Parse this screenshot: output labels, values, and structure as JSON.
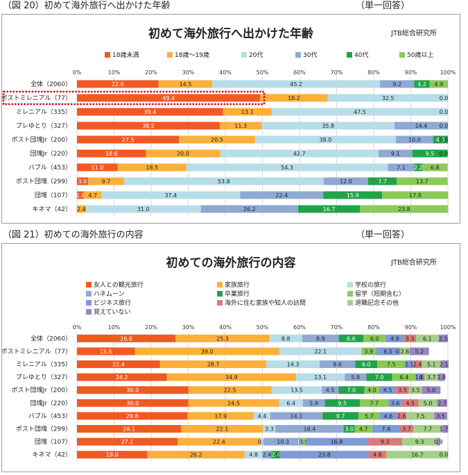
{
  "fig20": {
    "caption": "（図 20）初めて海外旅行へ出かけた年齢",
    "note": "（単一回答）",
    "credit": "JTB総合研究所"
  },
  "fig21": {
    "caption": "（図 21）初めての海外旅行の内容",
    "note": "（単一回答）",
    "credit": "JTB総合研究所"
  },
  "chart_data": [
    {
      "type": "bar",
      "orientation": "horizontal",
      "stacked": true,
      "title": "初めて海外旅行へ出かけた年齢",
      "xlim": [
        0,
        100
      ],
      "xticks": [
        "0%",
        "10%",
        "20%",
        "30%",
        "40%",
        "50%",
        "60%",
        "70%",
        "80%",
        "90%",
        "100%"
      ],
      "legend_position": "top",
      "highlighted_category": "ポストミレニアル（77）",
      "categories": [
        "全体（2060）",
        "ポストミレニアル（77）",
        "ミレニアル（335）",
        "プレゆとり（327）",
        "ポスト団塊Jr（200）",
        "団塊Jr（220）",
        "バブル（453）",
        "ポスト団塊（299）",
        "団塊（107）",
        "キネマ（42）"
      ],
      "series": [
        {
          "name": "18歳未満",
          "color": "#f05a22",
          "values": [
            22.0,
            49.4,
            39.4,
            38.5,
            27.5,
            18.6,
            11.0,
            3.0,
            1.9,
            0.0
          ]
        },
        {
          "name": "18歳～19歳",
          "color": "#fbb03b",
          "values": [
            14.5,
            18.2,
            13.1,
            11.3,
            20.5,
            20.0,
            18.5,
            9.7,
            4.7,
            2.4
          ]
        },
        {
          "name": "20代",
          "color": "#b7dde8",
          "values": [
            45.2,
            32.5,
            47.5,
            35.8,
            38.0,
            42.7,
            54.3,
            53.8,
            37.4,
            31.0
          ]
        },
        {
          "name": "30代",
          "color": "#8fa9d2",
          "values": [
            9.2,
            0.0,
            0.0,
            14.4,
            10.0,
            9.1,
            7.1,
            12.0,
            22.4,
            26.2
          ]
        },
        {
          "name": "40代",
          "color": "#22a24b",
          "values": [
            4.2,
            0.0,
            0.0,
            0.0,
            4.0,
            9.5,
            2.2,
            7.7,
            15.9,
            16.7
          ]
        },
        {
          "name": "50歳以上",
          "color": "#8cc95a",
          "values": [
            4.9,
            0.0,
            0.0,
            0.0,
            0.0,
            0.0,
            6.8,
            13.7,
            17.8,
            23.8
          ]
        }
      ],
      "data_labels": [
        [
          "22.0",
          "14.5",
          "45.2",
          "9.2",
          "4.2",
          "4.9"
        ],
        [
          "49.4",
          "18.2",
          "32.5",
          "",
          "",
          "0.0"
        ],
        [
          "39.4",
          "13.1",
          "47.5",
          "",
          "",
          "0.0"
        ],
        [
          "38.5",
          "11.3",
          "35.8",
          "14.4",
          "",
          "0.0"
        ],
        [
          "27.5",
          "20.5",
          "38.0",
          "10.0",
          "4.0",
          "0.0"
        ],
        [
          "18.6",
          "20.0",
          "42.7",
          "9.1",
          "9.5",
          "0.0"
        ],
        [
          "11.0",
          "18.5",
          "54.3",
          "7.1",
          "2.2",
          "6.8"
        ],
        [
          "3.0",
          "9.7",
          "53.8",
          "12.0",
          "7.7",
          "13.7"
        ],
        [
          "1.9",
          "4.7",
          "37.4",
          "22.4",
          "15.9",
          "17.8"
        ],
        [
          "0.0",
          "2.4",
          "31.0",
          "26.2",
          "16.7",
          "23.8"
        ]
      ]
    },
    {
      "type": "bar",
      "orientation": "horizontal",
      "stacked": true,
      "title": "初めての海外旅行の内容",
      "xlim": [
        0,
        100
      ],
      "xticks": [
        "0%",
        "10%",
        "20%",
        "30%",
        "40%",
        "50%",
        "60%",
        "70%",
        "80%",
        "90%",
        "100%"
      ],
      "legend_position": "top",
      "categories": [
        "全体（2060）",
        "ポストミレニアル（77）",
        "ミレニアル（335）",
        "プレゆとり（327）",
        "ポスト団塊Jr（200）",
        "団塊Jr（220）",
        "バブル（453）",
        "ポスト団塊（299）",
        "団塊（107）",
        "キネマ（42）"
      ],
      "series": [
        {
          "name": "友人との観光旅行",
          "color": "#f05a22",
          "values": [
            26.6,
            15.6,
            22.4,
            24.2,
            30.0,
            30.0,
            29.8,
            28.1,
            27.1,
            19.0
          ]
        },
        {
          "name": "家族旅行",
          "color": "#fbb03b",
          "values": [
            25.3,
            39.0,
            28.7,
            34.9,
            22.5,
            24.5,
            17.9,
            22.1,
            22.4,
            26.2
          ]
        },
        {
          "name": "学校の旅行",
          "color": "#b7dde8",
          "values": [
            8.8,
            22.1,
            14.3,
            13.1,
            13.5,
            6.4,
            4.4,
            3.3,
            0.9,
            4.8
          ]
        },
        {
          "name": "ハネムーン",
          "color": "#8fa9d2",
          "values": [
            9.9,
            0.0,
            9.6,
            5.8,
            4.5,
            5.9,
            14.1,
            18.4,
            10.3,
            2.4
          ]
        },
        {
          "name": "卒業旅行",
          "color": "#22a24b",
          "values": [
            6.6,
            0.0,
            6.0,
            7.0,
            7.0,
            9.5,
            9.7,
            3.0,
            0.0,
            2.4
          ]
        },
        {
          "name": "留学（短期含む）",
          "color": "#8cc95a",
          "values": [
            6.0,
            3.9,
            7.5,
            6.4,
            4.0,
            7.7,
            5.7,
            4.7,
            0.9,
            0.0
          ]
        },
        {
          "name": "ビジネス旅行",
          "color": "#7f9ad6",
          "values": [
            4.9,
            6.5,
            2.1,
            1.8,
            4.5,
            3.6,
            4.6,
            7.4,
            16.8,
            23.8
          ]
        },
        {
          "name": "海外に住む家族や知人の訪問",
          "color": "#d97b7b",
          "values": [
            3.3,
            0.0,
            2.4,
            0.5,
            3.5,
            4.5,
            2.6,
            3.7,
            9.3,
            4.8
          ]
        },
        {
          "name": "退職記念その他",
          "color": "#a6cf8a",
          "values": [
            6.1,
            2.6,
            5.1,
            3.7,
            3.5,
            5.0,
            7.5,
            7.7,
            9.3,
            16.7
          ]
        },
        {
          "name": "覚えていない",
          "color": "#9a86c3",
          "values": [
            2.5,
            5.2,
            2.1,
            1.8,
            5.0,
            2.7,
            3.5,
            1.7,
            0.9,
            0.0
          ]
        }
      ],
      "data_labels": [
        [
          "26.6",
          "25.3",
          "8.8",
          "9.9",
          "6.6",
          "6.0",
          "4.9",
          "3.3",
          "6.1",
          "2.5"
        ],
        [
          "15.6",
          "39.0",
          "22.1",
          "0.0",
          "0.0",
          "3.9",
          "6.5",
          "0.0",
          "2.6",
          "5.2"
        ],
        [
          "22.4",
          "28.7",
          "14.3",
          "9.6",
          "6.0",
          "7.5",
          "2.1",
          "2.4",
          "5.1",
          "2.1"
        ],
        [
          "24.2",
          "34.9",
          "13.1",
          "5.8",
          "7.0",
          "6.4",
          "1.8",
          "0.5",
          "3.7",
          "1.8"
        ],
        [
          "30.0",
          "22.5",
          "13.5",
          "4.5",
          "7.0",
          "4.0",
          "4.5",
          "3.5",
          "3.5",
          "5.0"
        ],
        [
          "30.0",
          "24.5",
          "6.4",
          "5.9",
          "9.5",
          "7.7",
          "3.6",
          "4.5",
          "5.0",
          "2.7"
        ],
        [
          "29.8",
          "17.9",
          "4.4",
          "14.1",
          "9.7",
          "5.7",
          "4.6",
          "2.6",
          "7.5",
          "3.5"
        ],
        [
          "28.1",
          "22.1",
          "3.3",
          "18.4",
          "3.0",
          "4.7",
          "7.4",
          "3.7",
          "7.7",
          "1.7"
        ],
        [
          "27.1",
          "22.4",
          "0.9",
          "10.3",
          "0.0",
          "0.9",
          "16.8",
          "9.3",
          "9.3",
          "0.9"
        ],
        [
          "19.0",
          "26.2",
          "4.8",
          "2.4",
          "2.4",
          "0.0",
          "23.8",
          "4.8",
          "16.7",
          "0.0"
        ]
      ]
    }
  ]
}
